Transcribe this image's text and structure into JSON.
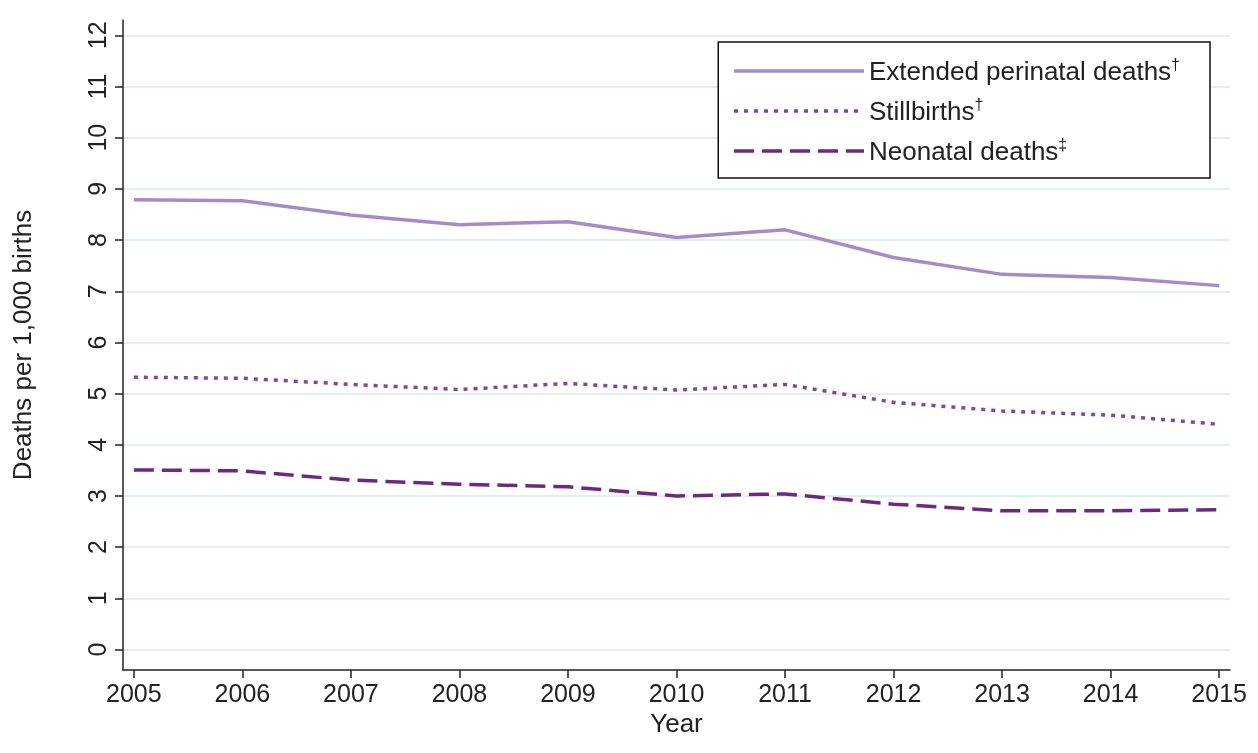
{
  "chart_data": {
    "type": "line",
    "xlabel": "Year",
    "ylabel": "Deaths per 1,000 births",
    "x": [
      2005,
      2006,
      2007,
      2008,
      2009,
      2010,
      2011,
      2012,
      2013,
      2014,
      2015
    ],
    "series": [
      {
        "name": "Extended perinatal deaths$^{†}$",
        "color": "#a58cc8",
        "line_style": "solid",
        "values": [
          8.79,
          8.77,
          8.49,
          8.3,
          8.36,
          8.05,
          8.2,
          7.66,
          7.33,
          7.27,
          7.11
        ]
      },
      {
        "name": "Stillbirths$^{†}$",
        "color": "#85439a",
        "line_style": "dotted",
        "values": [
          5.32,
          5.3,
          5.18,
          5.08,
          5.2,
          5.07,
          5.18,
          4.83,
          4.66,
          4.58,
          4.4
        ]
      },
      {
        "name": "Neonatal deaths$^{‡}$",
        "color": "#6b2a7e",
        "line_style": "dashed",
        "values": [
          3.51,
          3.49,
          3.31,
          3.23,
          3.18,
          3.0,
          3.04,
          2.84,
          2.71,
          2.71,
          2.73
        ]
      }
    ],
    "xlim": [
      2004.9,
      2015.1
    ],
    "xticks": [
      2005,
      2006,
      2007,
      2008,
      2009,
      2010,
      2011,
      2012,
      2013,
      2014,
      2015
    ],
    "ylim": [
      -0.4,
      12.3
    ],
    "yticks": [
      0,
      1,
      2,
      3,
      4,
      5,
      6,
      7,
      8,
      9,
      10,
      11,
      12
    ],
    "grid": "y",
    "legend": "top right",
    "marker": "none"
  }
}
